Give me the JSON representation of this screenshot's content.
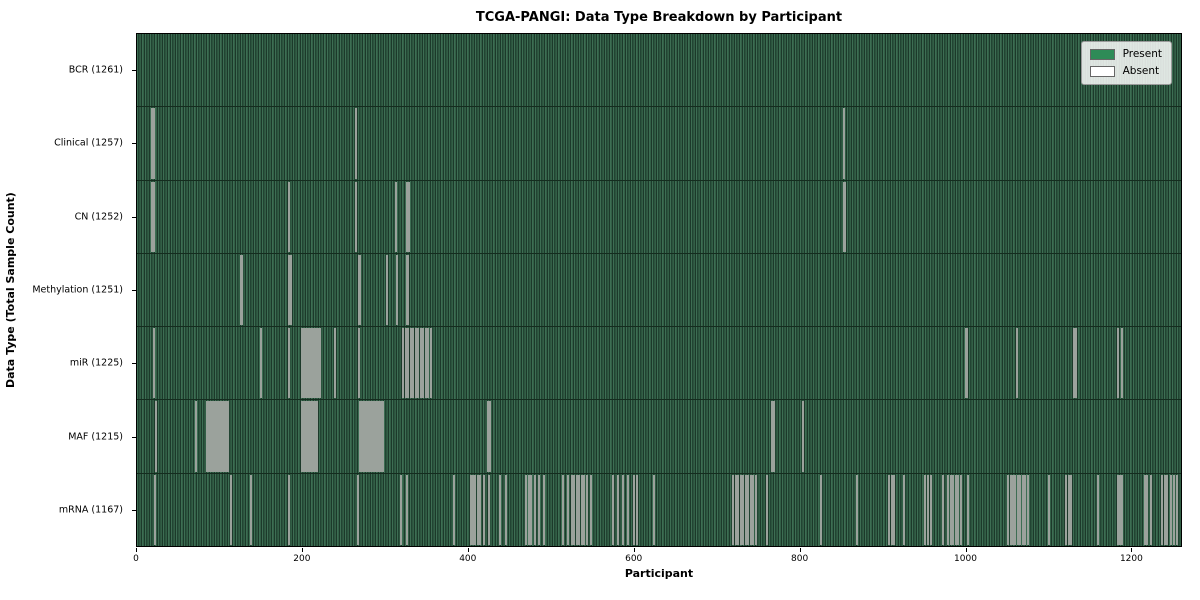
{
  "chart_data": {
    "type": "heatmap",
    "title": "TCGA-PANGI: Data Type Breakdown by Participant",
    "xlabel": "Participant",
    "ylabel": "Data Type (Total Sample Count)",
    "xlim": [
      0,
      1261
    ],
    "x_ticks": [
      0,
      200,
      400,
      600,
      800,
      1000,
      1200
    ],
    "total_participants": 1261,
    "grid": false,
    "legend_position": "upper right",
    "legend_items": [
      {
        "label": "Present",
        "color": "#2e8b57"
      },
      {
        "label": "Absent",
        "color": "#ffffff"
      }
    ],
    "colors": {
      "present_fill": "#2e8b57",
      "present_stripe_light": "#3d6e53",
      "present_stripe_dark": "#1c392a",
      "absent_mark": "#9ba29c",
      "row_separator": "#142c1e"
    },
    "rows": [
      {
        "label": "BCR",
        "count": 1261,
        "absent": []
      },
      {
        "label": "Clinical",
        "count": 1257,
        "absent": [
          18,
          20,
          264,
          852
        ]
      },
      {
        "label": "CN",
        "count": 1252,
        "absent": [
          18,
          20,
          183,
          264,
          312,
          326,
          328,
          852,
          854
        ]
      },
      {
        "label": "Methylation",
        "count": 1251,
        "absent": [
          125,
          127,
          183,
          185,
          267,
          269,
          301,
          313,
          325,
          327
        ]
      },
      {
        "label": "miR",
        "count": 1225,
        "absent": [
          20,
          149,
          183,
          199,
          201,
          203,
          205,
          207,
          209,
          211,
          213,
          215,
          217,
          219,
          221,
          239,
          267,
          321,
          324,
          327,
          330,
          333,
          336,
          339,
          342,
          345,
          348,
          351,
          354,
          999,
          1001,
          1061,
          1130,
          1132,
          1182,
          1187
        ]
      },
      {
        "label": "MAF",
        "count": 1215,
        "absent": [
          23,
          71,
          84,
          86,
          88,
          90,
          92,
          94,
          96,
          98,
          100,
          102,
          104,
          106,
          108,
          110,
          199,
          201,
          203,
          205,
          207,
          209,
          211,
          213,
          215,
          217,
          269,
          271,
          273,
          275,
          277,
          279,
          281,
          283,
          285,
          287,
          289,
          291,
          293,
          295,
          297,
          423,
          425,
          766,
          768,
          803
        ]
      },
      {
        "label": "mRNA",
        "count": 1167,
        "absent": [
          22,
          113,
          137,
          183,
          266,
          318,
          326,
          382,
          402,
          405,
          408,
          411,
          414,
          418,
          424,
          438,
          445,
          469,
          472,
          475,
          480,
          485,
          490,
          514,
          519,
          524,
          527,
          530,
          533,
          536,
          539,
          543,
          547,
          574,
          580,
          586,
          592,
          599,
          603,
          623,
          719,
          722,
          725,
          728,
          731,
          734,
          737,
          740,
          743,
          746,
          759,
          824,
          868,
          907,
          910,
          913,
          924,
          950,
          953,
          957,
          972,
          978,
          981,
          984,
          987,
          990,
          993,
          1002,
          1050,
          1053,
          1056,
          1059,
          1062,
          1065,
          1068,
          1071,
          1074,
          1099,
          1120,
          1123,
          1126,
          1158,
          1182,
          1185,
          1188,
          1215,
          1218,
          1222,
          1236,
          1239,
          1242,
          1246,
          1250,
          1254
        ]
      }
    ]
  }
}
